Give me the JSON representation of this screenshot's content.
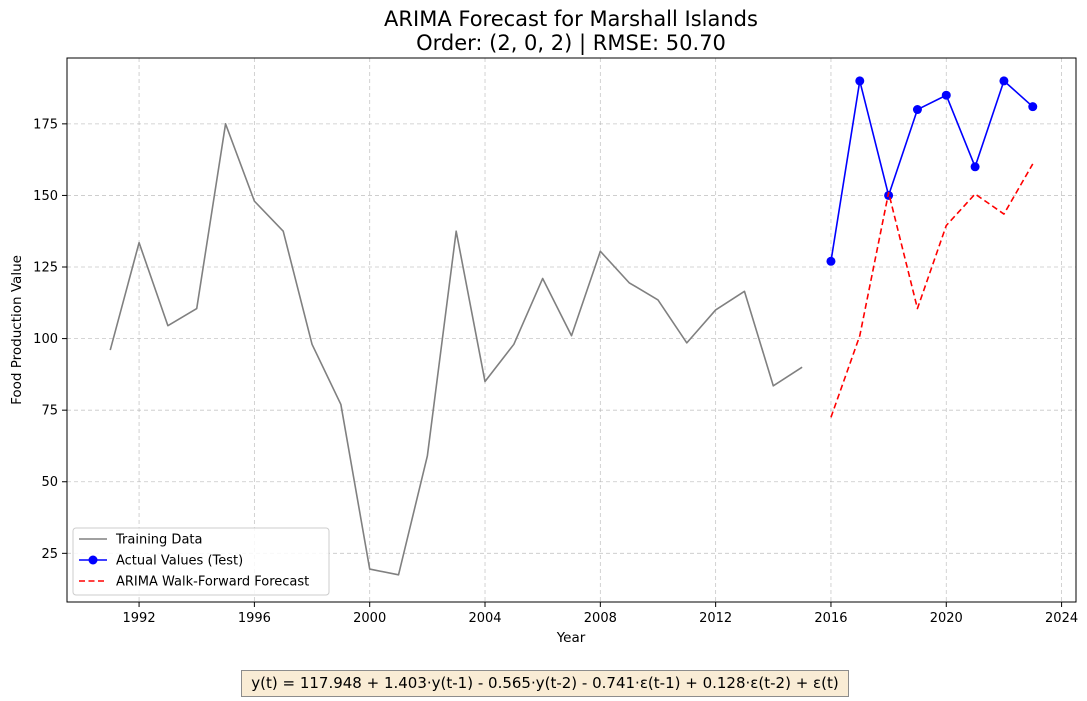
{
  "chart_data": {
    "type": "line",
    "title": "ARIMA Forecast for Marshall Islands",
    "subtitle": "Order: (2, 0, 2) | RMSE: 50.70",
    "xlabel": "Year",
    "ylabel": "Food Production Value",
    "xlim": [
      1989.5,
      2024.5
    ],
    "ylim": [
      8,
      198
    ],
    "x_ticks": [
      1992,
      1996,
      2000,
      2004,
      2008,
      2012,
      2016,
      2020,
      2024
    ],
    "y_ticks": [
      25,
      50,
      75,
      100,
      125,
      150,
      175
    ],
    "grid": true,
    "legend_position": "lower-left",
    "series": [
      {
        "name": "Training Data",
        "color": "#808080",
        "style": "solid",
        "markers": false,
        "x": [
          1991,
          1992,
          1993,
          1994,
          1995,
          1996,
          1997,
          1998,
          1999,
          2000,
          2001,
          2002,
          2003,
          2004,
          2005,
          2006,
          2007,
          2008,
          2009,
          2010,
          2011,
          2012,
          2013,
          2014,
          2015
        ],
        "y": [
          96,
          133.5,
          104.5,
          110.5,
          175,
          148,
          137.5,
          98,
          77,
          19.5,
          17.5,
          59,
          137.5,
          85,
          98,
          121,
          101,
          130.5,
          119.5,
          113.5,
          98.5,
          110,
          116.5,
          83.5,
          90
        ]
      },
      {
        "name": "Actual Values (Test)",
        "color": "#0000ff",
        "style": "solid",
        "markers": true,
        "x": [
          2016,
          2017,
          2018,
          2019,
          2020,
          2021,
          2022,
          2023
        ],
        "y": [
          127,
          190,
          150,
          180,
          185,
          160,
          190,
          181
        ]
      },
      {
        "name": "ARIMA Walk-Forward Forecast",
        "color": "#ff0000",
        "style": "dashed",
        "markers": false,
        "x": [
          2016,
          2017,
          2018,
          2019,
          2020,
          2021,
          2022,
          2023
        ],
        "y": [
          72.5,
          101,
          151,
          110.5,
          139.5,
          150.5,
          143.5,
          161
        ]
      }
    ]
  },
  "equation": "y(t) = 117.948 + 1.403·y(t-1) - 0.565·y(t-2) - 0.741·ε(t-1) + 0.128·ε(t-2) + ε(t)"
}
